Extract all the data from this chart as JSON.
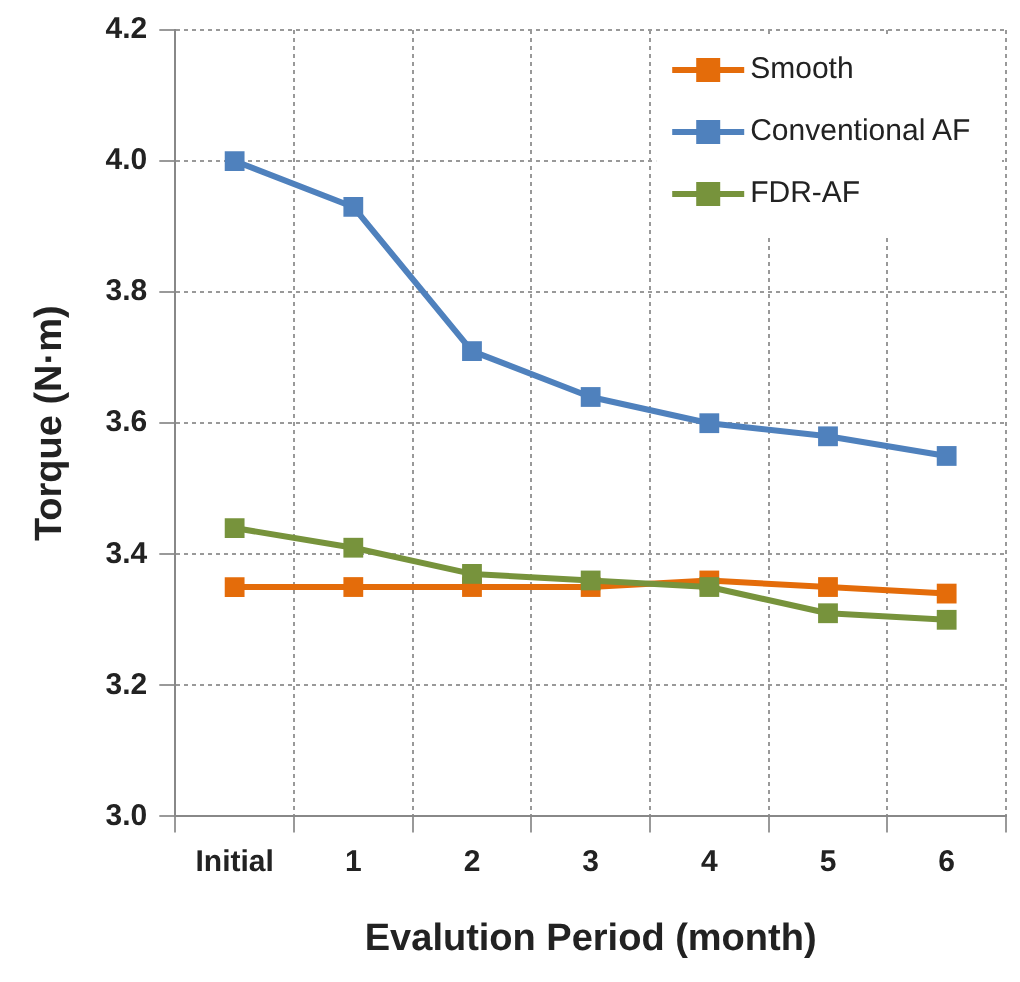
{
  "chart_data": {
    "type": "line",
    "xlabel": "Evalution Period (month)",
    "ylabel": "Torque (N·m)",
    "categories": [
      "Initial",
      "1",
      "2",
      "3",
      "4",
      "5",
      "6"
    ],
    "series": [
      {
        "name": "Smooth",
        "color": "#e46c0a",
        "values": [
          3.35,
          3.35,
          3.35,
          3.35,
          3.36,
          3.35,
          3.34
        ]
      },
      {
        "name": "Conventional AF",
        "color": "#4f81bd",
        "values": [
          4.0,
          3.93,
          3.71,
          3.64,
          3.6,
          3.58,
          3.55
        ]
      },
      {
        "name": "FDR-AF",
        "color": "#77933c",
        "values": [
          3.44,
          3.41,
          3.37,
          3.36,
          3.35,
          3.31,
          3.3
        ]
      }
    ],
    "ylim": [
      3.0,
      4.2
    ],
    "yticks": [
      {
        "value": 3.0,
        "label": "3.0"
      },
      {
        "value": 3.2,
        "label": "3.2"
      },
      {
        "value": 3.4,
        "label": "3.4"
      },
      {
        "value": 3.6,
        "label": "3.6"
      },
      {
        "value": 3.8,
        "label": "3.8"
      },
      {
        "value": 4.0,
        "label": "4.0"
      },
      {
        "value": 4.2,
        "label": "4.2"
      }
    ],
    "grid": true,
    "legend": "top right",
    "marker": "square",
    "line_style": "solid"
  }
}
